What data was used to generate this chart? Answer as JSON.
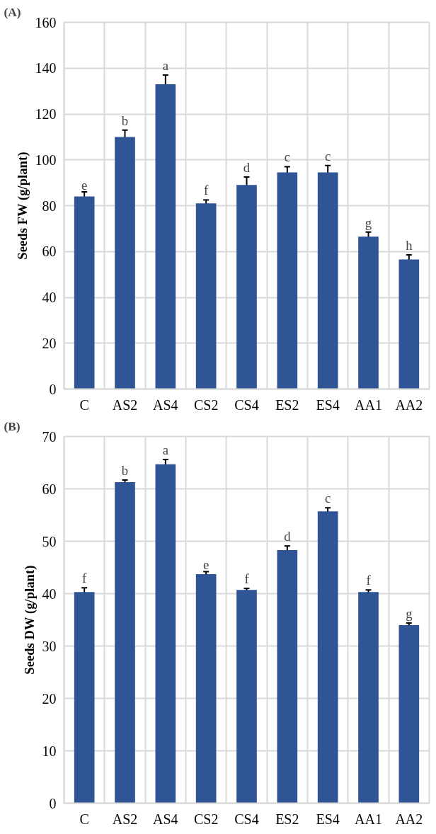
{
  "chart_data": [
    {
      "type": "bar",
      "title": "(A)",
      "ylabel": "Seeds FW (g/plant)",
      "categories": [
        "C",
        "AS2",
        "AS4",
        "CS2",
        "CS4",
        "ES2",
        "ES4",
        "AA1",
        "AA2"
      ],
      "values": [
        84,
        110,
        133,
        81,
        89,
        94.5,
        94.5,
        66.5,
        56.5
      ],
      "errors": [
        2,
        3,
        4,
        1.5,
        3.5,
        2.5,
        3,
        2,
        2
      ],
      "color": "#2f5597",
      "ylim": [
        0,
        160
      ],
      "yticks": [
        0,
        20,
        40,
        60,
        80,
        100,
        120,
        140,
        160
      ],
      "grid": true,
      "annotations": [
        {
          "text": "e",
          "x": "C",
          "y": 86
        },
        {
          "text": "b",
          "x": "AS2",
          "y": 113
        },
        {
          "text": "a",
          "x": "AS4",
          "y": 137
        },
        {
          "text": "f",
          "x": "CS2",
          "y": 82.5
        },
        {
          "text": "d",
          "x": "CS4",
          "y": 92.5
        },
        {
          "text": "c",
          "x": "ES2",
          "y": 97
        },
        {
          "text": "c",
          "x": "ES4",
          "y": 97.5
        },
        {
          "text": "g",
          "x": "AA1",
          "y": 68.5
        },
        {
          "text": "h",
          "x": "AA2",
          "y": 58.5
        }
      ]
    },
    {
      "type": "bar",
      "title": "(B)",
      "ylabel": "Seeds DW (g/plant)",
      "categories": [
        "C",
        "AS2",
        "AS4",
        "CS2",
        "CS4",
        "ES2",
        "ES4",
        "AA1",
        "AA2"
      ],
      "values": [
        40.3,
        61.3,
        64.7,
        43.7,
        40.7,
        48.3,
        55.7,
        40.3,
        34.0
      ],
      "errors": [
        0.8,
        0.4,
        0.9,
        0.5,
        0.3,
        0.8,
        0.7,
        0.4,
        0.4
      ],
      "color": "#2f5597",
      "ylim": [
        0,
        70
      ],
      "yticks": [
        0,
        10,
        20,
        30,
        40,
        50,
        60,
        70
      ],
      "grid": true,
      "annotations": [
        {
          "text": "f",
          "x": "C",
          "y": 41.1
        },
        {
          "text": "b",
          "x": "AS2",
          "y": 61.7
        },
        {
          "text": "a",
          "x": "AS4",
          "y": 65.6
        },
        {
          "text": "e",
          "x": "CS2",
          "y": 44.2
        },
        {
          "text": "f",
          "x": "CS4",
          "y": 41
        },
        {
          "text": "d",
          "x": "ES2",
          "y": 49.1
        },
        {
          "text": "c",
          "x": "ES4",
          "y": 56.4
        },
        {
          "text": "f",
          "x": "AA1",
          "y": 40.7
        },
        {
          "text": "g",
          "x": "AA2",
          "y": 34.4
        }
      ]
    }
  ]
}
